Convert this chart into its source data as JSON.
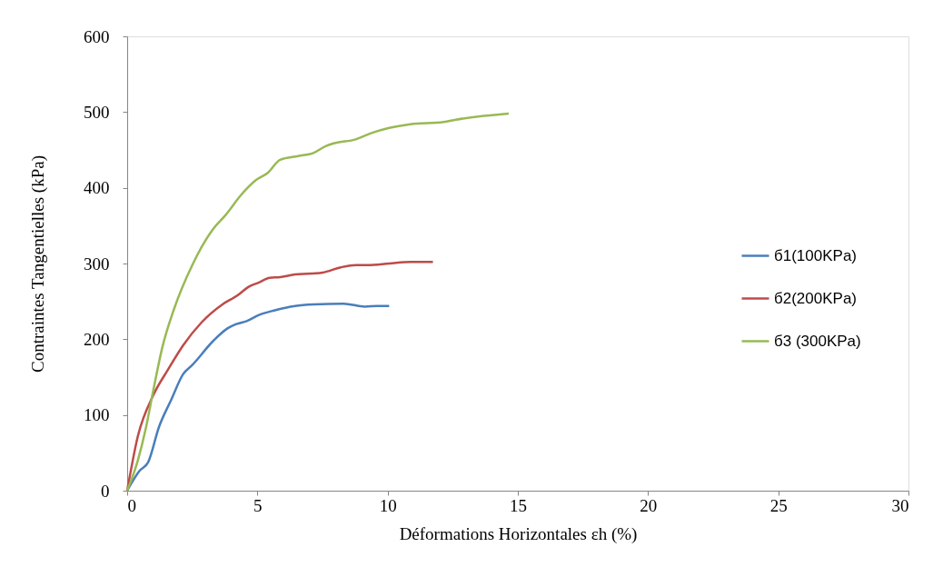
{
  "chart_data": {
    "type": "line",
    "xlabel": "Déformations Horizontales εh (%)",
    "ylabel": "Contraintes Tangentielles  (kPa)",
    "xlim": [
      0,
      30
    ],
    "xticks": [
      0,
      5,
      10,
      15,
      20,
      25,
      30
    ],
    "ylim": [
      0,
      600
    ],
    "yticks": [
      0,
      100,
      200,
      300,
      400,
      500,
      600
    ],
    "grid": false,
    "legend": "right",
    "marker": "none",
    "line_style": "solid",
    "series": [
      {
        "name": "б1(100KPa)",
        "color": "#4a7ebb",
        "x": [
          0,
          0.47,
          0.81,
          1.22,
          1.69,
          2.15,
          2.5,
          3.31,
          3.84,
          4.19,
          4.59,
          5.06,
          5.64,
          6.45,
          7.15,
          8.31,
          9.13,
          9.59,
          10.06
        ],
        "values": [
          0,
          26,
          38,
          84,
          120,
          154,
          166,
          198,
          214,
          220,
          224,
          232,
          238,
          244,
          246,
          247,
          243,
          244,
          244
        ]
      },
      {
        "name": "б2(200KPa)",
        "color": "#be4b48",
        "x": [
          0,
          0.41,
          1.0,
          1.57,
          2.15,
          2.85,
          3.66,
          4.24,
          4.65,
          5.06,
          5.47,
          5.87,
          6.34,
          7.5,
          8.2,
          8.78,
          9.24,
          10.06,
          10.87,
          11.74
        ],
        "values": [
          0,
          72,
          126,
          160,
          192,
          222,
          246,
          258,
          269,
          275,
          281,
          282,
          285,
          288,
          295,
          298,
          298,
          300,
          302,
          302
        ]
      },
      {
        "name": "б3 (300KPa)",
        "color": "#98b954",
        "x": [
          0,
          0.41,
          0.7,
          1.0,
          1.34,
          1.8,
          2.5,
          3.31,
          3.78,
          4.36,
          4.94,
          5.41,
          5.87,
          6.57,
          7.15,
          7.62,
          7.97,
          8.78,
          9.36,
          10.06,
          10.87,
          12.15,
          12.62,
          14.65
        ],
        "values": [
          0,
          40,
          80,
          132,
          188,
          240,
          298,
          346,
          364,
          390,
          410,
          420,
          437,
          442,
          446,
          455,
          459,
          464,
          472,
          479,
          484,
          487,
          490,
          498
        ]
      }
    ]
  }
}
